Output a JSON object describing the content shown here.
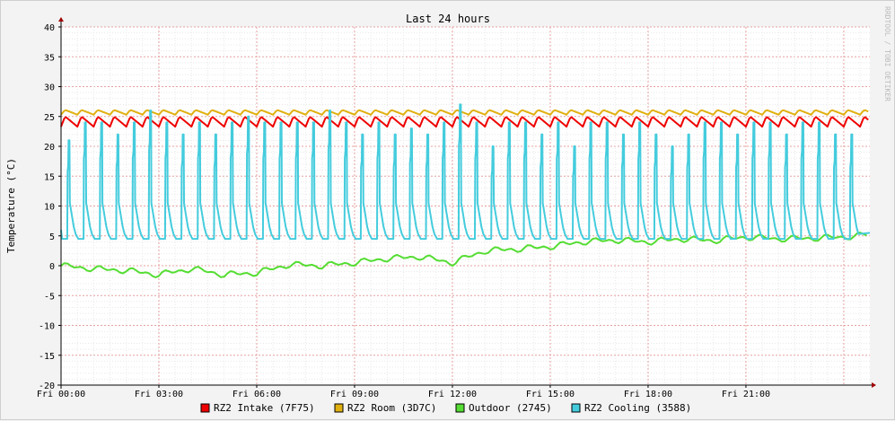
{
  "watermark": "RRDTOOL / TOBI OETIKER",
  "chart_data": {
    "type": "line",
    "title": "Last 24 hours",
    "xlabel": "",
    "ylabel": "Temperature (°C)",
    "ylim": [
      -20,
      40
    ],
    "yticks": [
      40,
      35,
      30,
      25,
      20,
      15,
      10,
      5,
      0,
      -5,
      -10,
      -15,
      -20
    ],
    "xlim_hours": [
      0,
      24.8
    ],
    "xtick_labels": [
      "Fri 00:00",
      "Fri 03:00",
      "Fri 06:00",
      "Fri 09:00",
      "Fri 12:00",
      "Fri 15:00",
      "Fri 18:00",
      "Fri 21:00"
    ],
    "xtick_hours": [
      0,
      3,
      6,
      9,
      12,
      15,
      18,
      21
    ],
    "grid": true,
    "legend_position": "bottom",
    "series": [
      {
        "name": "RZ2 Intake (7F75)",
        "color": "#ee0000",
        "shape": "sawtooth",
        "period_h": 0.5,
        "low": 23.3,
        "high": 25.0
      },
      {
        "name": "RZ2 Room (3D7C)",
        "color": "#e0b010",
        "shape": "sawtooth",
        "period_h": 0.5,
        "low": 25.3,
        "high": 26.1
      },
      {
        "name": "Outdoor (2745)",
        "color": "#55dd33",
        "shape": "trend",
        "x": [
          0,
          1,
          2,
          3,
          4,
          5,
          6,
          7,
          8,
          9,
          10,
          11,
          12,
          13,
          14,
          15,
          16,
          17,
          18,
          19,
          20,
          21,
          22,
          23,
          24,
          24.8
        ],
        "y": [
          0,
          -0.5,
          -0.8,
          -1.5,
          -0.5,
          -1.5,
          -1.2,
          0.2,
          0.0,
          0.5,
          1.2,
          1.5,
          0.5,
          2.5,
          2.8,
          3.2,
          4.0,
          4.3,
          4.0,
          4.5,
          4.2,
          4.8,
          4.5,
          4.6,
          4.8,
          5.2
        ]
      },
      {
        "name": "RZ2 Cooling (3588)",
        "color": "#44ccdd",
        "shape": "spikes",
        "period_h": 0.5,
        "base": 4.5,
        "x": [
          0.25,
          0.75,
          1.25,
          1.75,
          2.25,
          2.75,
          3.25,
          3.75,
          4.25,
          4.75,
          5.25,
          5.75,
          6.25,
          6.75,
          7.25,
          7.75,
          8.25,
          8.75,
          9.25,
          9.75,
          10.25,
          10.75,
          11.25,
          11.75,
          12.25,
          12.75,
          13.25,
          13.75,
          14.25,
          14.75,
          15.25,
          15.75,
          16.25,
          16.75,
          17.25,
          17.75,
          18.25,
          18.75,
          19.25,
          19.75,
          20.25,
          20.75,
          21.25,
          21.75,
          22.25,
          22.75,
          23.25,
          23.75,
          24.25
        ],
        "peaks": [
          21,
          24,
          24,
          22,
          24,
          26,
          24,
          22,
          24,
          22,
          24,
          25,
          24,
          24,
          24,
          24,
          26,
          24,
          22,
          24,
          22,
          23,
          22,
          24,
          27,
          24,
          20,
          24,
          24,
          22,
          24,
          20,
          24,
          24,
          22,
          24,
          22,
          20,
          22,
          24,
          24,
          22,
          24,
          24,
          22,
          24,
          24,
          22,
          22
        ]
      }
    ]
  }
}
